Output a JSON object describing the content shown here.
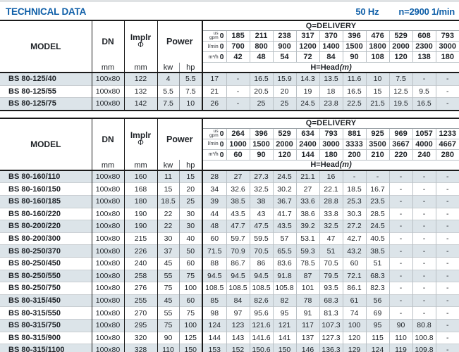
{
  "page": {
    "title": "TECHNICAL DATA",
    "frequency": "50 Hz",
    "speed": "n=2900 1/min",
    "accent_color": "#0f5fa8",
    "stripe_color": "#dce4e9"
  },
  "columns": {
    "model": "MODEL",
    "dn": "DN",
    "implr": "Implr",
    "implr_symbol": "Φ",
    "power": "Power",
    "unit_mm": "mm",
    "unit_kw": "kw",
    "unit_hp": "hp",
    "q_delivery": "Q=DELIVERY",
    "h_head": "H=Head",
    "h_head_unit": "(m)",
    "unit_us": "us",
    "unit_gpm": "gpm",
    "unit_lmin": "l/min",
    "unit_m3h": "m³/h",
    "zero": "0"
  },
  "tables": [
    {
      "flow": {
        "usgpm": [
          "185",
          "211",
          "238",
          "317",
          "370",
          "396",
          "476",
          "529",
          "608",
          "793"
        ],
        "lmin": [
          "700",
          "800",
          "900",
          "1200",
          "1400",
          "1500",
          "1800",
          "2000",
          "2300",
          "3000"
        ],
        "m3h": [
          "42",
          "48",
          "54",
          "72",
          "84",
          "90",
          "108",
          "120",
          "138",
          "180"
        ]
      },
      "rows": [
        {
          "model": "BS 80-125/40",
          "dn": "100x80",
          "implr": "122",
          "kw": "4",
          "hp": "5.5",
          "heads": [
            "17",
            "-",
            "16.5",
            "15.9",
            "14.3",
            "13.5",
            "11.6",
            "10",
            "7.5",
            "-",
            "-"
          ]
        },
        {
          "model": "BS 80-125/55",
          "dn": "100x80",
          "implr": "132",
          "kw": "5.5",
          "hp": "7.5",
          "heads": [
            "21",
            "-",
            "20.5",
            "20",
            "19",
            "18",
            "16.5",
            "15",
            "12.5",
            "9.5",
            "-"
          ]
        },
        {
          "model": "BS 80-125/75",
          "dn": "100x80",
          "implr": "142",
          "kw": "7.5",
          "hp": "10",
          "heads": [
            "26",
            "-",
            "25",
            "25",
            "24.5",
            "23.8",
            "22.5",
            "21.5",
            "19.5",
            "16.5",
            "-"
          ]
        }
      ]
    },
    {
      "flow": {
        "usgpm": [
          "264",
          "396",
          "529",
          "634",
          "793",
          "881",
          "925",
          "969",
          "1057",
          "1233"
        ],
        "lmin": [
          "1000",
          "1500",
          "2000",
          "2400",
          "3000",
          "3333",
          "3500",
          "3667",
          "4000",
          "4667"
        ],
        "m3h": [
          "60",
          "90",
          "120",
          "144",
          "180",
          "200",
          "210",
          "220",
          "240",
          "280"
        ]
      },
      "rows": [
        {
          "model": "BS 80-160/110",
          "dn": "100x80",
          "implr": "160",
          "kw": "11",
          "hp": "15",
          "heads": [
            "28",
            "27",
            "27.3",
            "24.5",
            "21.1",
            "16",
            "-",
            "-",
            "-",
            "-",
            "-"
          ]
        },
        {
          "model": "BS 80-160/150",
          "dn": "100x80",
          "implr": "168",
          "kw": "15",
          "hp": "20",
          "heads": [
            "34",
            "32.6",
            "32.5",
            "30.2",
            "27",
            "22.1",
            "18.5",
            "16.7",
            "-",
            "-",
            "-"
          ]
        },
        {
          "model": "BS 80-160/185",
          "dn": "100x80",
          "implr": "180",
          "kw": "18.5",
          "hp": "25",
          "heads": [
            "39",
            "38.5",
            "38",
            "36.7",
            "33.6",
            "28.8",
            "25.3",
            "23.5",
            "-",
            "-",
            "-"
          ]
        },
        {
          "model": "BS 80-160/220",
          "dn": "100x80",
          "implr": "190",
          "kw": "22",
          "hp": "30",
          "heads": [
            "44",
            "43.5",
            "43",
            "41.7",
            "38.6",
            "33.8",
            "30.3",
            "28.5",
            "-",
            "-",
            "-"
          ]
        },
        {
          "model": "BS 80-200/220",
          "dn": "100x80",
          "implr": "190",
          "kw": "22",
          "hp": "30",
          "heads": [
            "48",
            "47.7",
            "47.5",
            "43.5",
            "39.2",
            "32.5",
            "27.2",
            "24.5",
            "-",
            "-",
            "-"
          ]
        },
        {
          "model": "BS 80-200/300",
          "dn": "100x80",
          "implr": "215",
          "kw": "30",
          "hp": "40",
          "heads": [
            "60",
            "59.7",
            "59.5",
            "57",
            "53.1",
            "47",
            "42.7",
            "40.5",
            "-",
            "-",
            "-"
          ]
        },
        {
          "model": "BS 80-250/370",
          "dn": "100x80",
          "implr": "226",
          "kw": "37",
          "hp": "50",
          "heads": [
            "71.5",
            "70.9",
            "70.5",
            "65.5",
            "59.3",
            "51",
            "43.2",
            "38.5",
            "-",
            "-",
            "-"
          ]
        },
        {
          "model": "BS 80-250/450",
          "dn": "100x80",
          "implr": "240",
          "kw": "45",
          "hp": "60",
          "heads": [
            "88",
            "86.7",
            "86",
            "83.6",
            "78.5",
            "70.5",
            "60",
            "51",
            "-",
            "-",
            "-"
          ]
        },
        {
          "model": "BS 80-250/550",
          "dn": "100x80",
          "implr": "258",
          "kw": "55",
          "hp": "75",
          "heads": [
            "94.5",
            "94.5",
            "94.5",
            "91.8",
            "87",
            "79.5",
            "72.1",
            "68.3",
            "-",
            "-",
            "-"
          ]
        },
        {
          "model": "BS 80-250/750",
          "dn": "100x80",
          "implr": "276",
          "kw": "75",
          "hp": "100",
          "heads": [
            "108.5",
            "108.5",
            "108.5",
            "105.8",
            "101",
            "93.5",
            "86.1",
            "82.3",
            "-",
            "-",
            "-"
          ]
        },
        {
          "model": "BS 80-315/450",
          "dn": "100x80",
          "implr": "255",
          "kw": "45",
          "hp": "60",
          "heads": [
            "85",
            "84",
            "82.6",
            "82",
            "78",
            "68.3",
            "61",
            "56",
            "-",
            "-",
            "-"
          ]
        },
        {
          "model": "BS 80-315/550",
          "dn": "100x80",
          "implr": "270",
          "kw": "55",
          "hp": "75",
          "heads": [
            "98",
            "97",
            "95.6",
            "95",
            "91",
            "81.3",
            "74",
            "69",
            "-",
            "-",
            "-"
          ]
        },
        {
          "model": "BS 80-315/750",
          "dn": "100x80",
          "implr": "295",
          "kw": "75",
          "hp": "100",
          "heads": [
            "124",
            "123",
            "121.6",
            "121",
            "117",
            "107.3",
            "100",
            "95",
            "90",
            "80.8",
            "-"
          ]
        },
        {
          "model": "BS 80-315/900",
          "dn": "100x80",
          "implr": "320",
          "kw": "90",
          "hp": "125",
          "heads": [
            "144",
            "143",
            "141.6",
            "141",
            "137",
            "127.3",
            "120",
            "115",
            "110",
            "100.8",
            "-"
          ]
        },
        {
          "model": "BS 80-315/1100",
          "dn": "100x80",
          "implr": "328",
          "kw": "110",
          "hp": "150",
          "heads": [
            "153",
            "152",
            "150.6",
            "150",
            "146",
            "136.3",
            "129",
            "124",
            "119",
            "109.8",
            "-"
          ]
        }
      ]
    }
  ]
}
